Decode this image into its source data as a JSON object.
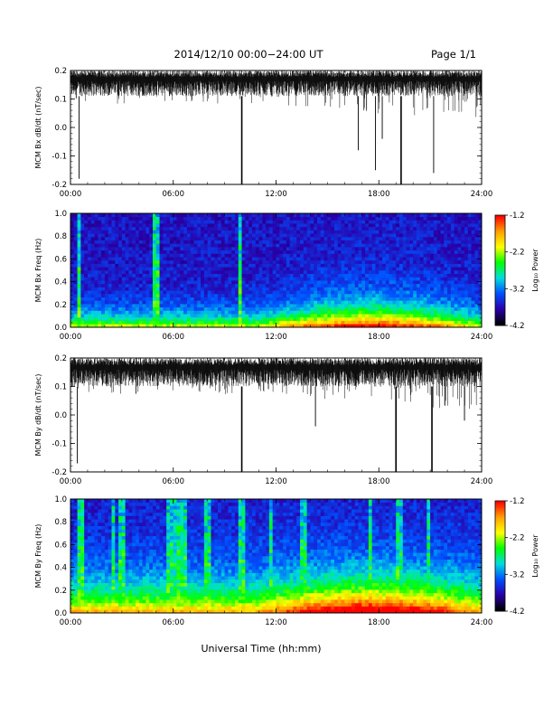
{
  "header": {
    "title": "2014/12/10   00:00−24:00 UT",
    "page": "Page 1/1"
  },
  "x_axis_title": "Universal Time (hh:mm)",
  "colorbar": {
    "label": "Log₁₀ Power",
    "ticks": [
      "-1.2",
      "-2.2",
      "-3.2",
      "-4.2"
    ],
    "colors": [
      "#ff0000",
      "#ffa000",
      "#ffff00",
      "#00ff00",
      "#00dddd",
      "#0050ff",
      "#2a00aa",
      "#000000"
    ]
  },
  "chart_data": [
    {
      "type": "line",
      "ylabel": "MCM Bx dB/dt (nT/sec)",
      "xlim": [
        0,
        24
      ],
      "ylim": [
        -0.2,
        0.2
      ],
      "x_ticks": [
        "00:00",
        "06:00",
        "12:00",
        "18:00",
        "24:00"
      ],
      "y_ticks": [
        "0.2",
        "0.1",
        "0.0",
        "-0.1",
        "-0.2"
      ],
      "baseline_band": [
        0.11,
        0.2
      ],
      "spikes": [
        {
          "x": 0.5,
          "y": -0.18
        },
        {
          "x": 10.0,
          "y": -0.2
        },
        {
          "x": 16.8,
          "y": -0.08
        },
        {
          "x": 17.8,
          "y": -0.15
        },
        {
          "x": 18.2,
          "y": -0.04
        },
        {
          "x": 19.3,
          "y": -0.2
        },
        {
          "x": 21.2,
          "y": -0.16
        }
      ]
    },
    {
      "type": "heatmap",
      "ylabel": "MCM Bx Freq (Hz)",
      "xlim": [
        0,
        24
      ],
      "ylim": [
        0.0,
        1.0
      ],
      "zlim": [
        -4.2,
        -1.2
      ],
      "x_ticks": [
        "00:00",
        "06:00",
        "12:00",
        "18:00",
        "24:00"
      ],
      "y_ticks": [
        "1.0",
        "0.8",
        "0.6",
        "0.4",
        "0.2",
        "0.0"
      ],
      "bright_columns": [
        0.5,
        5.0,
        9.9
      ]
    },
    {
      "type": "line",
      "ylabel": "MCM By dB/dt (nT/sec)",
      "xlim": [
        0,
        24
      ],
      "ylim": [
        -0.2,
        0.2
      ],
      "x_ticks": [
        "00:00",
        "06:00",
        "12:00",
        "18:00",
        "24:00"
      ],
      "y_ticks": [
        "0.2",
        "0.1",
        "0.0",
        "-0.1",
        "-0.2"
      ],
      "baseline_band": [
        0.1,
        0.2
      ],
      "spikes": [
        {
          "x": 0.4,
          "y": -0.17
        },
        {
          "x": 10.0,
          "y": -0.2
        },
        {
          "x": 14.3,
          "y": -0.04
        },
        {
          "x": 19.0,
          "y": -0.2
        },
        {
          "x": 21.1,
          "y": -0.2
        },
        {
          "x": 23.0,
          "y": -0.02
        }
      ]
    },
    {
      "type": "heatmap",
      "ylabel": "MCM By Freq (Hz)",
      "xlim": [
        0,
        24
      ],
      "ylim": [
        0.0,
        1.0
      ],
      "zlim": [
        -4.2,
        -1.2
      ],
      "x_ticks": [
        "00:00",
        "06:00",
        "12:00",
        "18:00",
        "24:00"
      ],
      "y_ticks": [
        "1.0",
        "0.8",
        "0.6",
        "0.4",
        "0.2",
        "0.0"
      ],
      "bright_columns": [
        0.6,
        2.5,
        3.0,
        5.8,
        6.2,
        6.6,
        8.0,
        10.0,
        11.7,
        13.6,
        17.5,
        19.2,
        20.9
      ]
    }
  ]
}
